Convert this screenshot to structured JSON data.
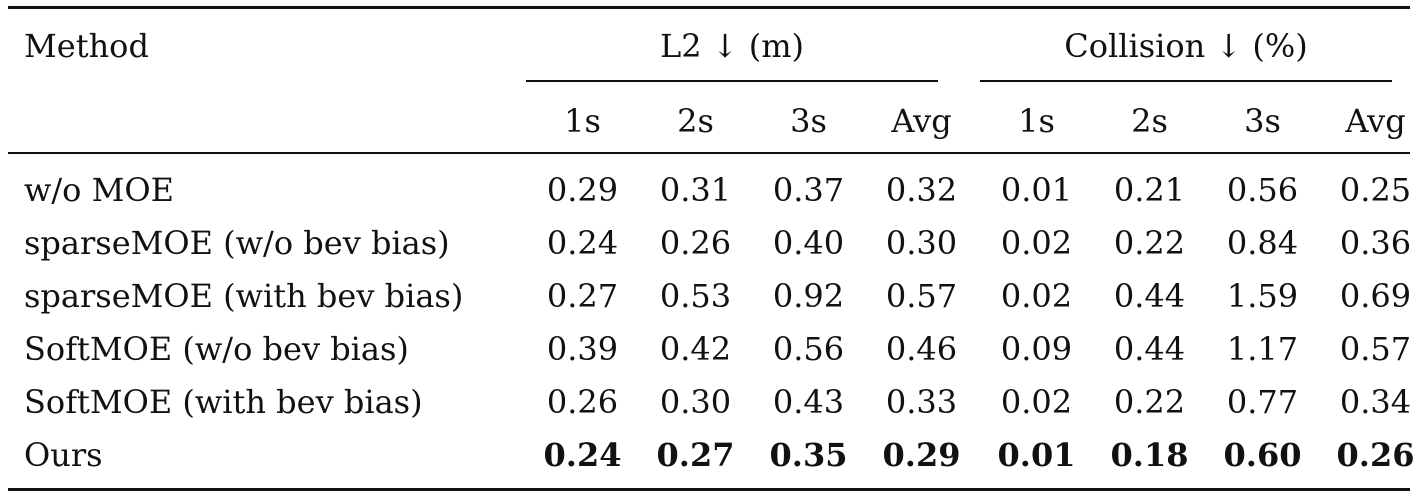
{
  "table": {
    "method_header": "Method",
    "groups": [
      {
        "label": "L2 ↓ (m)"
      },
      {
        "label": "Collision ↓ (%)"
      }
    ],
    "sub_headers": [
      "1s",
      "2s",
      "3s",
      "Avg",
      "1s",
      "2s",
      "3s",
      "Avg"
    ],
    "rows": [
      {
        "method": "w/o MOE",
        "values": [
          "0.29",
          "0.31",
          "0.37",
          "0.32",
          "0.01",
          "0.21",
          "0.56",
          "0.25"
        ]
      },
      {
        "method": "sparseMOE (w/o bev bias)",
        "values": [
          "0.24",
          "0.26",
          "0.40",
          "0.30",
          "0.02",
          "0.22",
          "0.84",
          "0.36"
        ]
      },
      {
        "method": "sparseMOE (with bev bias)",
        "values": [
          "0.27",
          "0.53",
          "0.92",
          "0.57",
          "0.02",
          "0.44",
          "1.59",
          "0.69"
        ]
      },
      {
        "method": "SoftMOE (w/o bev bias)",
        "values": [
          "0.39",
          "0.42",
          "0.56",
          "0.46",
          "0.09",
          "0.44",
          "1.17",
          "0.57"
        ]
      },
      {
        "method": "SoftMOE (with bev bias)",
        "values": [
          "0.26",
          "0.30",
          "0.43",
          "0.33",
          "0.02",
          "0.22",
          "0.77",
          "0.34"
        ]
      },
      {
        "method": "Ours",
        "values": [
          "0.24",
          "0.27",
          "0.35",
          "0.29",
          "0.01",
          "0.18",
          "0.60",
          "0.26"
        ],
        "bold_values": true
      }
    ]
  }
}
